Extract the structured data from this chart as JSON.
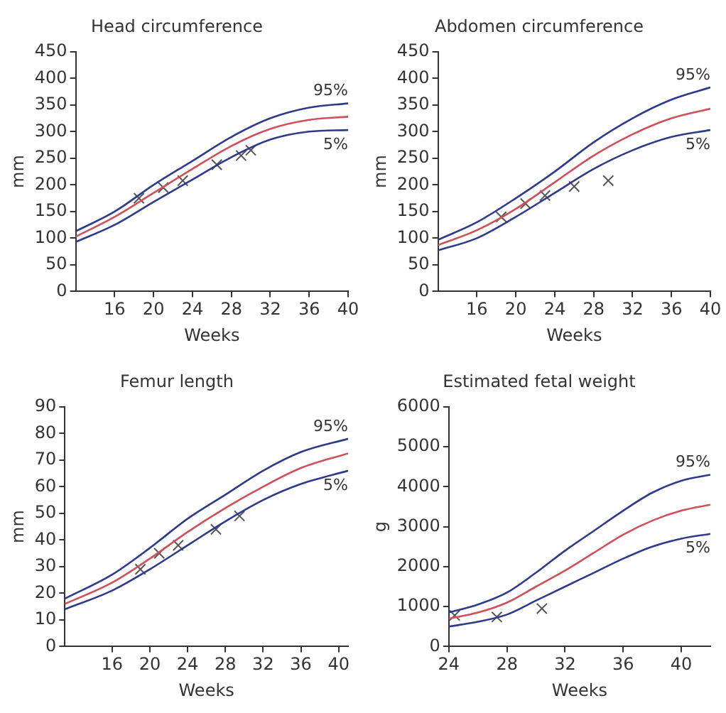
{
  "chart_data": [
    {
      "type": "line",
      "title": "Head circumference",
      "xlabel": "Weeks",
      "ylabel": "mm",
      "xlim": [
        12,
        40
      ],
      "xticks": [
        16,
        20,
        24,
        28,
        32,
        36,
        40
      ],
      "ylim": [
        0,
        450
      ],
      "yticks": [
        0,
        50,
        100,
        150,
        200,
        250,
        300,
        350,
        400,
        450
      ],
      "grid": false,
      "legend": false,
      "x": [
        12,
        16,
        20,
        24,
        28,
        32,
        36,
        40
      ],
      "series": [
        {
          "name": "95%",
          "color": "#2e3a8c",
          "values": [
            113,
            150,
            200,
            245,
            290,
            325,
            345,
            353
          ]
        },
        {
          "color": "#d0505a",
          "values": [
            103,
            140,
            185,
            230,
            273,
            305,
            322,
            328
          ]
        },
        {
          "name": "5%",
          "color": "#2e3a8c",
          "values": [
            93,
            125,
            168,
            210,
            252,
            285,
            300,
            303
          ]
        },
        {
          "type": "scatter",
          "marker": "cross",
          "color": "#555555",
          "x": [
            18.5,
            21,
            23,
            26.5,
            29,
            30
          ],
          "values": [
            175,
            195,
            208,
            238,
            255,
            265
          ]
        }
      ]
    },
    {
      "type": "line",
      "title": "Abdomen circumference",
      "xlabel": "Weeks",
      "ylabel": "mm",
      "xlim": [
        12,
        40
      ],
      "xticks": [
        16,
        20,
        24,
        28,
        32,
        36,
        40
      ],
      "ylim": [
        0,
        450
      ],
      "yticks": [
        0,
        50,
        100,
        150,
        200,
        250,
        300,
        350,
        400,
        450
      ],
      "grid": false,
      "legend": false,
      "x": [
        12,
        16,
        20,
        24,
        28,
        32,
        36,
        40
      ],
      "series": [
        {
          "name": "95%",
          "color": "#2e3a8c",
          "values": [
            97,
            130,
            175,
            225,
            280,
            325,
            360,
            383
          ]
        },
        {
          "color": "#d0505a",
          "values": [
            87,
            115,
            155,
            205,
            255,
            295,
            325,
            343
          ]
        },
        {
          "name": "5%",
          "color": "#2e3a8c",
          "values": [
            77,
            100,
            140,
            185,
            230,
            265,
            290,
            303
          ]
        },
        {
          "type": "scatter",
          "marker": "cross",
          "color": "#555555",
          "x": [
            18.5,
            21,
            23,
            26,
            29.5
          ],
          "values": [
            140,
            165,
            180,
            197,
            208
          ]
        }
      ]
    },
    {
      "type": "line",
      "title": "Femur length",
      "xlabel": "Weeks",
      "ylabel": "mm",
      "xlim": [
        11,
        41
      ],
      "xticks": [
        16,
        20,
        24,
        28,
        32,
        36,
        40
      ],
      "ylim": [
        0,
        90
      ],
      "yticks": [
        0,
        10,
        20,
        30,
        40,
        50,
        60,
        70,
        80,
        90
      ],
      "grid": false,
      "legend": false,
      "x": [
        11,
        16,
        20,
        24,
        28,
        32,
        36,
        41
      ],
      "series": [
        {
          "name": "95%",
          "color": "#2e3a8c",
          "values": [
            18,
            27,
            37,
            48,
            57,
            66,
            73,
            78
          ]
        },
        {
          "color": "#d0505a",
          "values": [
            16,
            24,
            33,
            43,
            52,
            60,
            67,
            72.5
          ]
        },
        {
          "name": "5%",
          "color": "#2e3a8c",
          "values": [
            14,
            21,
            29,
            38,
            47,
            55,
            61,
            66
          ]
        },
        {
          "type": "scatter",
          "marker": "cross",
          "color": "#555555",
          "x": [
            19,
            21,
            23,
            27,
            29.5
          ],
          "values": [
            29,
            35,
            38,
            44,
            49
          ]
        }
      ]
    },
    {
      "type": "line",
      "title": "Estimated fetal weight",
      "xlabel": "Weeks",
      "ylabel": "g",
      "xlim": [
        24,
        42
      ],
      "xticks": [
        24,
        28,
        32,
        36,
        40
      ],
      "ylim": [
        0,
        6000
      ],
      "yticks": [
        0,
        1000,
        2000,
        3000,
        4000,
        5000,
        6000
      ],
      "grid": false,
      "legend": false,
      "x": [
        24,
        26,
        28,
        30,
        32,
        34,
        36,
        38,
        40,
        42
      ],
      "series": [
        {
          "name": "95%",
          "color": "#2e3a8c",
          "values": [
            850,
            1050,
            1350,
            1850,
            2400,
            2900,
            3400,
            3850,
            4150,
            4300
          ]
        },
        {
          "color": "#d0505a",
          "values": [
            700,
            850,
            1100,
            1500,
            1900,
            2350,
            2800,
            3150,
            3400,
            3550
          ]
        },
        {
          "name": "5%",
          "color": "#2e3a8c",
          "values": [
            500,
            620,
            800,
            1150,
            1500,
            1850,
            2200,
            2500,
            2700,
            2820
          ]
        },
        {
          "type": "scatter",
          "marker": "cross",
          "color": "#555555",
          "x": [
            24.4,
            27.3,
            30.4
          ],
          "values": [
            780,
            740,
            950
          ]
        }
      ]
    }
  ]
}
